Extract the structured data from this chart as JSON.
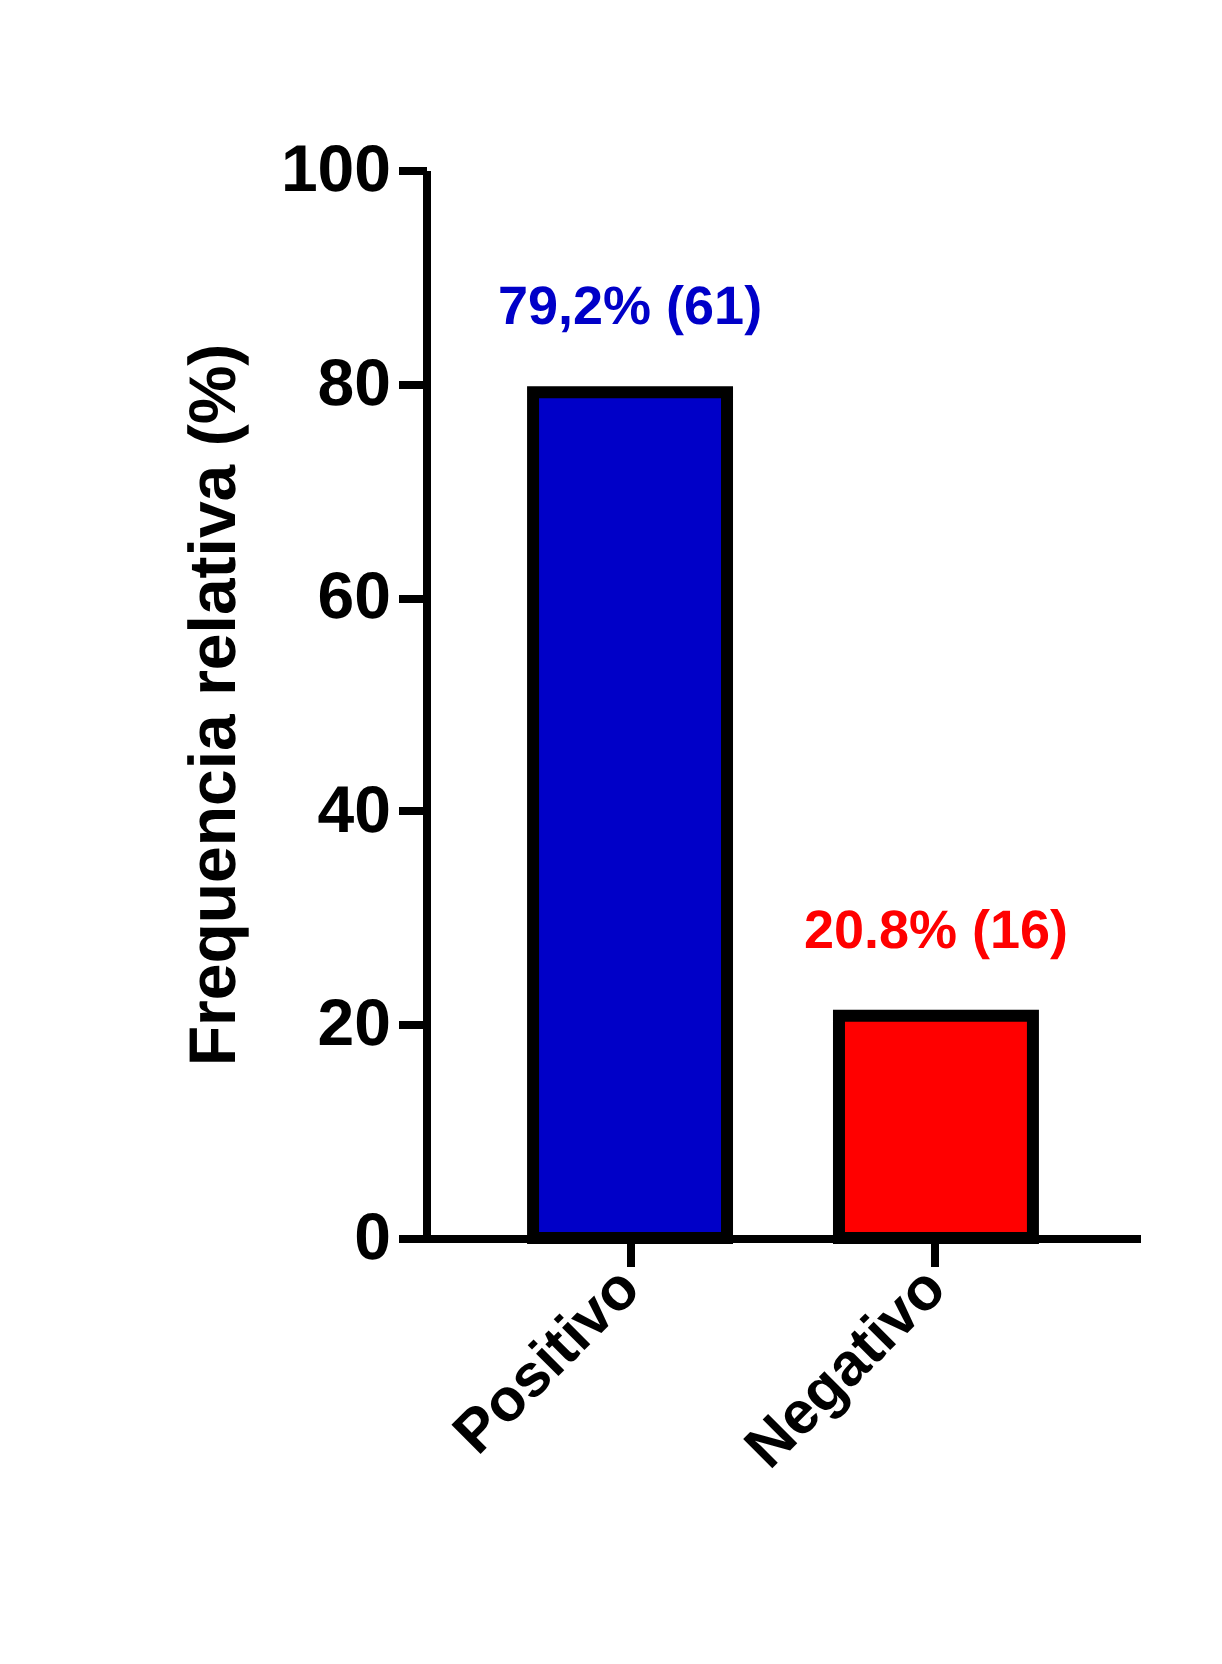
{
  "chart_data": {
    "type": "bar",
    "ylabel": "Frequencia relativa (%)",
    "categories": [
      "Positivo",
      "Negativo"
    ],
    "values": [
      79.2,
      20.8
    ],
    "colors": [
      "#0000c8",
      "#ff0000"
    ],
    "value_labels": [
      "79,2% (61)",
      "20.8% (16)"
    ],
    "ylim": [
      0,
      100
    ],
    "yticks": [
      0,
      20,
      40,
      60,
      80,
      100
    ],
    "grid": false,
    "legend": false
  }
}
